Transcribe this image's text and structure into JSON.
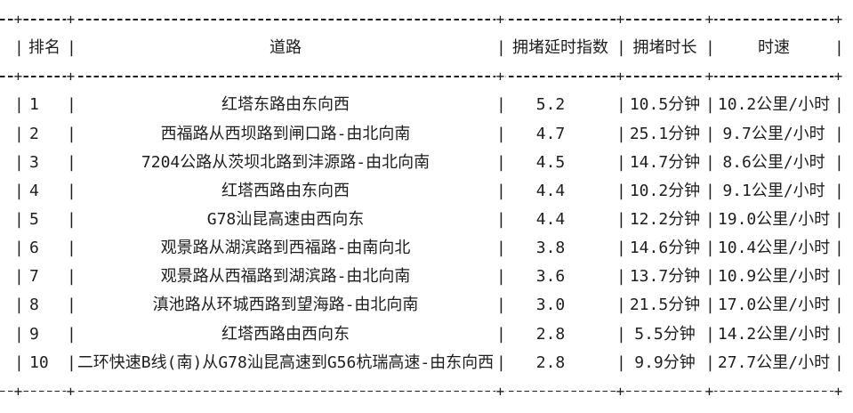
{
  "colors": {
    "background": "#ffffff",
    "ink": "#1e1e1e"
  },
  "table": {
    "columns": [
      "排名",
      "道路",
      "拥堵延时指数",
      "拥堵时长",
      "时速"
    ],
    "rows": [
      {
        "rank": "1",
        "road": "红塔东路由东向西",
        "delay_index": "5.2",
        "duration": "10.5分钟",
        "speed": "10.2公里/小时"
      },
      {
        "rank": "2",
        "road": "西福路从西坝路到闸口路-由北向南",
        "delay_index": "4.7",
        "duration": "25.1分钟",
        "speed": "9.7公里/小时"
      },
      {
        "rank": "3",
        "road": "7204公路从茨坝北路到沣源路-由北向南",
        "delay_index": "4.5",
        "duration": "14.7分钟",
        "speed": "8.6公里/小时"
      },
      {
        "rank": "4",
        "road": "红塔西路由东向西",
        "delay_index": "4.4",
        "duration": "10.2分钟",
        "speed": "9.1公里/小时"
      },
      {
        "rank": "5",
        "road": "G78汕昆高速由西向东",
        "delay_index": "4.4",
        "duration": "12.2分钟",
        "speed": "19.0公里/小时"
      },
      {
        "rank": "6",
        "road": "观景路从湖滨路到西福路-由南向北",
        "delay_index": "3.8",
        "duration": "14.6分钟",
        "speed": "10.4公里/小时"
      },
      {
        "rank": "7",
        "road": "观景路从西福路到湖滨路-由北向南",
        "delay_index": "3.6",
        "duration": "13.7分钟",
        "speed": "10.9公里/小时"
      },
      {
        "rank": "8",
        "road": "滇池路从环城西路到望海路-由北向南",
        "delay_index": "3.0",
        "duration": "21.5分钟",
        "speed": "17.0公里/小时"
      },
      {
        "rank": "9",
        "road": "红塔西路由西向东",
        "delay_index": "2.8",
        "duration": "5.5分钟",
        "speed": "14.2公里/小时"
      },
      {
        "rank": "10",
        "road": "二环快速B线(南)从G78汕昆高速到G56杭瑞高速-由东向西",
        "delay_index": "2.8",
        "duration": "9.9分钟",
        "speed": "27.7公里/小时"
      }
    ]
  }
}
